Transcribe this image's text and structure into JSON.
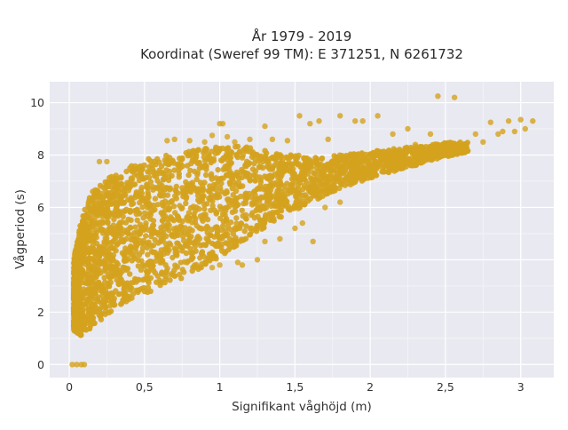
{
  "chart_data": {
    "type": "scatter",
    "title_lines": [
      "År 1979 - 2019",
      "Koordinat (Sweref 99 TM): E 371251, N 6261732"
    ],
    "xlabel": "Signifikant våghöjd (m)",
    "ylabel": "Vågperiod (s)",
    "xlim": [
      -0.13,
      3.22
    ],
    "ylim": [
      -0.5,
      10.8
    ],
    "x_ticks": [
      0,
      0.5,
      1,
      1.5,
      2,
      2.5,
      3
    ],
    "x_tick_labels": [
      "0",
      "0,5",
      "1",
      "1,5",
      "2",
      "2,5",
      "3"
    ],
    "y_ticks": [
      0,
      2,
      4,
      6,
      8,
      10
    ],
    "y_tick_labels": [
      "0",
      "2",
      "4",
      "6",
      "8",
      "10"
    ],
    "grid": true,
    "background_color": "#e9e9f1",
    "marker_color": "#d4a21d",
    "envelope": {
      "x": [
        0.03,
        0.08,
        0.15,
        0.25,
        0.35,
        0.45,
        0.55,
        0.65,
        0.75,
        0.85,
        0.95,
        1.05,
        1.2,
        1.35,
        1.5,
        1.65,
        1.8,
        1.95,
        2.1,
        2.25,
        2.4,
        2.55,
        2.65
      ],
      "y_low": [
        1.3,
        1.1,
        1.4,
        1.9,
        2.3,
        2.6,
        2.8,
        3.0,
        3.3,
        3.6,
        3.9,
        4.3,
        4.9,
        5.4,
        5.9,
        6.3,
        6.7,
        7.0,
        7.3,
        7.5,
        7.8,
        8.0,
        8.1
      ],
      "y_high": [
        4.0,
        5.6,
        6.6,
        7.1,
        7.4,
        7.7,
        7.9,
        8.0,
        8.1,
        8.2,
        8.3,
        8.4,
        8.3,
        8.1,
        8.0,
        7.9,
        8.0,
        8.1,
        8.2,
        8.3,
        8.4,
        8.5,
        8.5
      ]
    },
    "outliers": [
      [
        0.02,
        0.0
      ],
      [
        0.05,
        0.0
      ],
      [
        0.08,
        0.0
      ],
      [
        0.1,
        0.0
      ],
      [
        0.2,
        7.75
      ],
      [
        0.25,
        7.75
      ],
      [
        0.65,
        8.55
      ],
      [
        0.7,
        8.6
      ],
      [
        0.8,
        8.55
      ],
      [
        0.9,
        8.5
      ],
      [
        0.95,
        8.75
      ],
      [
        1.0,
        9.2
      ],
      [
        1.02,
        9.2
      ],
      [
        1.05,
        8.7
      ],
      [
        1.1,
        8.5
      ],
      [
        1.2,
        8.6
      ],
      [
        1.3,
        9.1
      ],
      [
        1.35,
        8.6
      ],
      [
        1.45,
        8.55
      ],
      [
        1.53,
        9.5
      ],
      [
        1.6,
        9.2
      ],
      [
        1.66,
        9.3
      ],
      [
        1.72,
        8.6
      ],
      [
        1.8,
        9.5
      ],
      [
        1.9,
        9.3
      ],
      [
        1.95,
        9.3
      ],
      [
        2.05,
        9.5
      ],
      [
        2.15,
        8.8
      ],
      [
        2.25,
        9.0
      ],
      [
        2.3,
        8.4
      ],
      [
        2.4,
        8.8
      ],
      [
        2.45,
        10.25
      ],
      [
        2.56,
        10.2
      ],
      [
        2.6,
        8.4
      ],
      [
        2.7,
        8.8
      ],
      [
        2.75,
        8.5
      ],
      [
        2.8,
        9.25
      ],
      [
        2.85,
        8.8
      ],
      [
        2.88,
        8.9
      ],
      [
        2.92,
        9.3
      ],
      [
        2.96,
        8.9
      ],
      [
        3.0,
        9.35
      ],
      [
        3.03,
        9.0
      ],
      [
        3.08,
        9.3
      ],
      [
        1.2,
        5.2
      ],
      [
        1.3,
        4.7
      ],
      [
        1.4,
        4.8
      ],
      [
        1.5,
        5.2
      ],
      [
        1.55,
        5.4
      ],
      [
        1.62,
        4.7
      ],
      [
        1.7,
        6.0
      ],
      [
        1.8,
        6.2
      ],
      [
        0.95,
        3.7
      ],
      [
        1.0,
        3.8
      ],
      [
        1.12,
        3.9
      ],
      [
        1.15,
        3.8
      ],
      [
        1.25,
        4.0
      ],
      [
        0.62,
        3.9
      ],
      [
        0.55,
        3.7
      ]
    ]
  }
}
